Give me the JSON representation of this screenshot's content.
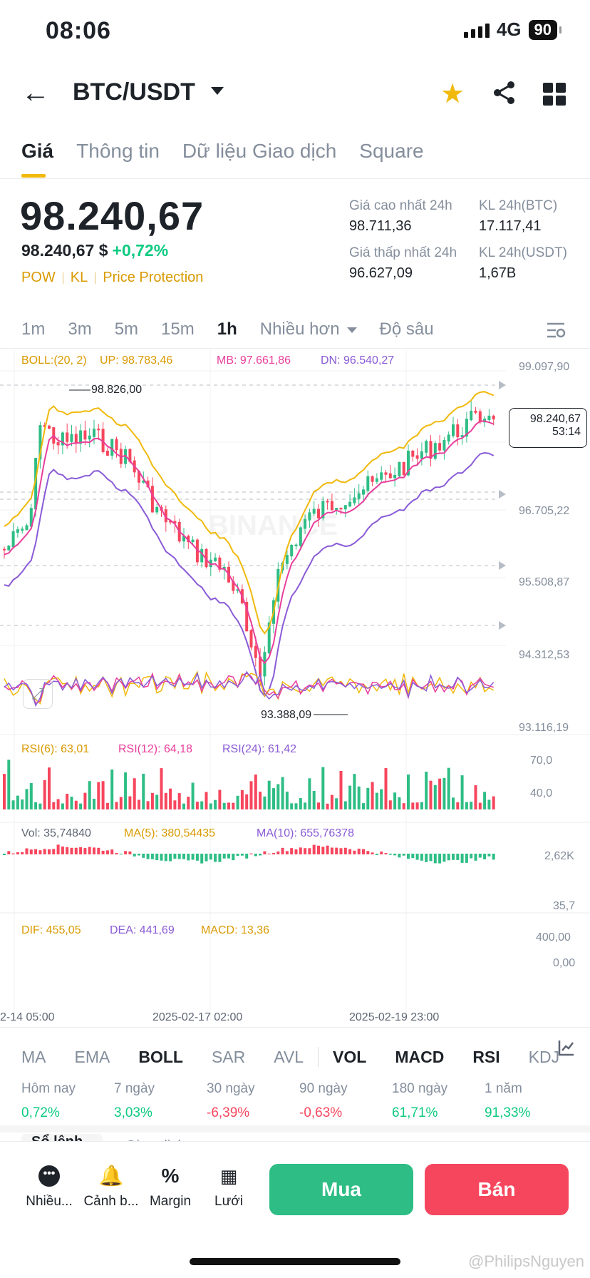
{
  "status": {
    "time": "08:06",
    "network": "4G",
    "battery": "90"
  },
  "header": {
    "pair": "BTC/USDT"
  },
  "tabs": [
    "Giá",
    "Thông tin",
    "Dữ liệu Giao dịch",
    "Square"
  ],
  "ticker": {
    "last_price": "98.240,67",
    "usd_price": "98.240,67 $",
    "change": "+0,72%",
    "tags": [
      "POW",
      "KL",
      "Price Protection"
    ],
    "high_label": "Giá cao nhất 24h",
    "high": "98.711,36",
    "vol_btc_label": "KL 24h(BTC)",
    "vol_btc": "17.117,41",
    "low_label": "Giá thấp nhất 24h",
    "low": "96.627,09",
    "vol_usdt_label": "KL 24h(USDT)",
    "vol_usdt": "1,67B"
  },
  "intervals": [
    "1m",
    "3m",
    "5m",
    "15m",
    "1h",
    "Nhiều hơn",
    "Độ sâu"
  ],
  "main_chart": {
    "boll_label": "BOLL:(20, 2)",
    "up": "UP: 98.783,46",
    "mb": "MB: 97.661,86",
    "dn": "DN: 96.540,27",
    "y_ticks": [
      "99.097,90",
      "96.705,22",
      "95.508,87",
      "94.312,53",
      "93.116,19"
    ],
    "high_marker": "98.826,00",
    "low_marker": "93.388,09",
    "current_price": "98.240,67",
    "countdown": "53:14",
    "watermark": "BINANCE"
  },
  "rsi": {
    "r6": "RSI(6): 63,01",
    "r12": "RSI(12): 64,18",
    "r24": "RSI(24): 61,42",
    "y_ticks": [
      "70,0",
      "40,0"
    ]
  },
  "vol": {
    "vol": "Vol: 35,74840",
    "ma5": "MA(5): 380,54435",
    "ma10": "MA(10): 655,76378",
    "y_ticks": [
      "2,62K",
      "35,7"
    ]
  },
  "macd": {
    "dif": "DIF: 455,05",
    "dea": "DEA: 441,69",
    "macd": "MACD: 13,36",
    "y_ticks": [
      "400,00",
      "0,00"
    ]
  },
  "x_labels": [
    "2-14 05:00",
    "2025-02-17 02:00",
    "2025-02-19 23:00"
  ],
  "indicators": [
    "MA",
    "EMA",
    "BOLL",
    "SAR",
    "AVL",
    "VOL",
    "MACD",
    "RSI",
    "KDJ"
  ],
  "performance": [
    {
      "label": "Hôm nay",
      "value": "0,72%",
      "dir": "pos"
    },
    {
      "label": "7 ngày",
      "value": "3,03%",
      "dir": "pos"
    },
    {
      "label": "30 ngày",
      "value": "-6,39%",
      "dir": "neg"
    },
    {
      "label": "90 ngày",
      "value": "-0,63%",
      "dir": "neg"
    },
    {
      "label": "180 ngày",
      "value": "61,71%",
      "dir": "pos"
    },
    {
      "label": "1 năm",
      "value": "91,33%",
      "dir": "pos"
    }
  ],
  "under_tabs": [
    "Sổ lệnh",
    "Giao dịch"
  ],
  "bottom_nav": [
    "Nhiều...",
    "Cảnh b...",
    "Margin",
    "Lưới"
  ],
  "actions": {
    "buy": "Mua",
    "sell": "Bán"
  },
  "credit": "@PhilipsNguyen",
  "colors": {
    "accent": "#f0b90b",
    "up": "#0ecb81",
    "down": "#f6465d",
    "upper": "#f0b90b",
    "mid": "#e83e9c",
    "lower": "#8a5bd6"
  }
}
